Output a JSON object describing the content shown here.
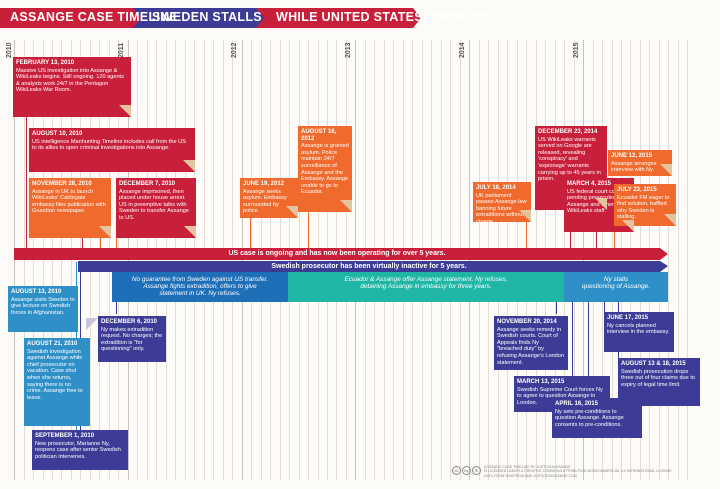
{
  "header": {
    "title1": "ASSANGE CASE TIMELINE",
    "title2": "SWEDEN STALLS",
    "title3": "WHILE UNITED STATES PURSUES"
  },
  "years": [
    "2010",
    "2011",
    "2012",
    "2013",
    "2014",
    "2015"
  ],
  "colors": {
    "red": "#c8203a",
    "orange": "#ef6a2c",
    "blue": "#3c3c97",
    "lightblue": "#2f8fc7",
    "teal": "#1fb6a6",
    "gold": "#c9a068"
  },
  "bars": {
    "us": "US case is ongoing and has now been operating for over 5 years.",
    "sweden": "Swedish prosecutor has been virtually inactive for 5 years."
  },
  "bands": {
    "blue": "No guarantee from Sweden against US transfer.\nAssange fights extradition, offers to give\nstatement in UK. Ny refuses.",
    "teal": "Ecuador & Assange offer Assange statement. Ny refuses,\ndetaining Assange in embassy for three years.",
    "light": "Ny stalls\nquestioning of Assange."
  },
  "events": {
    "e1": {
      "date": "FEBRUARY 13, 2010",
      "text": "Massive US investigation into Assange & WikiLeaks begins. Still ongoing. 120 agents & analysts work 24/7 in the Pentagon WikiLeaks War Room."
    },
    "e2": {
      "date": "AUGUST 10, 2010",
      "text": "US intelligence Manhunting Timeline includes call from the US to its allies to open criminal investigations into Assange."
    },
    "e3": {
      "date": "NOVEMBER 28, 2010",
      "text": "Assange in UK to launch WikiLeaks' Cablegate embassy files publication with Guardian newspaper."
    },
    "e4": {
      "date": "DECEMBER 7, 2010",
      "text": "Assange imprisoned, then placed under house arrest. US in preemptive talks with Sweden to transfer Assange to US."
    },
    "e5": {
      "date": "JUNE 19, 2012",
      "text": "Assange seeks asylum. Embassy surrounded by police."
    },
    "e6": {
      "date": "AUGUST 16, 2012",
      "text": "Assange is granted asylum. Police maintain 24/7 surveillance of Assange and the Embassy. Assange unable to go to Ecuador."
    },
    "e7": {
      "date": "JULY 18, 2014",
      "text": "UK parliament passes Assange law banning future extraditions without charge."
    },
    "e8": {
      "date": "DECEMBER 23, 2014",
      "text": "US WikiLeaks warrants served on Google are released, revealing 'conspiracy' and 'espionage' warrants carrying up to 45 years in prison."
    },
    "e9": {
      "date": "MARCH 4, 2015",
      "text": "US federal court confirms pending prosecution of Assange and other WikiLeaks staff."
    },
    "e10": {
      "date": "JUNE 12, 2015",
      "text": "Assange arranges interview with Ny."
    },
    "e11": {
      "date": "JULY 23, 2015",
      "text": "Ecuador FM eager to find solution, baffled why Sweden is stalling."
    },
    "b1": {
      "date": "AUGUST 13, 2010",
      "text": "Assange visits Sweden to give lecture on Swedish forces in Afghanistan."
    },
    "b2": {
      "date": "AUGUST 21, 2010",
      "text": "Swedish investigation against Assange while chief prosecutor on vacation. Case shut when she returns, saying there is no crime. Assange free to leave."
    },
    "b3": {
      "date": "SEPTEMBER 1, 2010",
      "text": "New prosecutor, Marianne Ny, reopens case after senior Swedish politician intervenes."
    },
    "b4": {
      "date": "DECEMBER 6, 2010",
      "text": "Ny makes extradition request. No charges; the extradition is \"for questioning\" only."
    },
    "b5": {
      "date": "NOVEMBER 20, 2014",
      "text": "Assange seeks remedy in Swedish courts. Court of Appeals finds Ny \"breached duty\" by refusing Assange's London statement."
    },
    "b6": {
      "date": "MARCH 13, 2015",
      "text": "Swedish Supreme Court forces Ny to agree to question Assange in London."
    },
    "b7": {
      "date": "APRIL 16, 2015",
      "text": "Ny sets pre-conditions to question Assange. Assange consents to pre-conditions."
    },
    "b8": {
      "date": "JUNE 17, 2015",
      "text": "Ny cancels planned interview in the embassy."
    },
    "b9": {
      "date": "AUGUST 13 & 18, 2015",
      "text": "Swedish prosecution drops three out of four claims due to expiry of legal time limit."
    }
  },
  "footer": {
    "text": "ASSANGE CASE TIMELINE BY JUSTICE4ASSANGE\nIS LICENSED UNDER A CREATIVE COMMONS ATTRIBUTION-NONCOMMERCIAL 4.0 INTERNATIONAL LICENSE\nDATA FROM WIKIPEDIA AND JUSTICE4ASSANGE.COM"
  }
}
